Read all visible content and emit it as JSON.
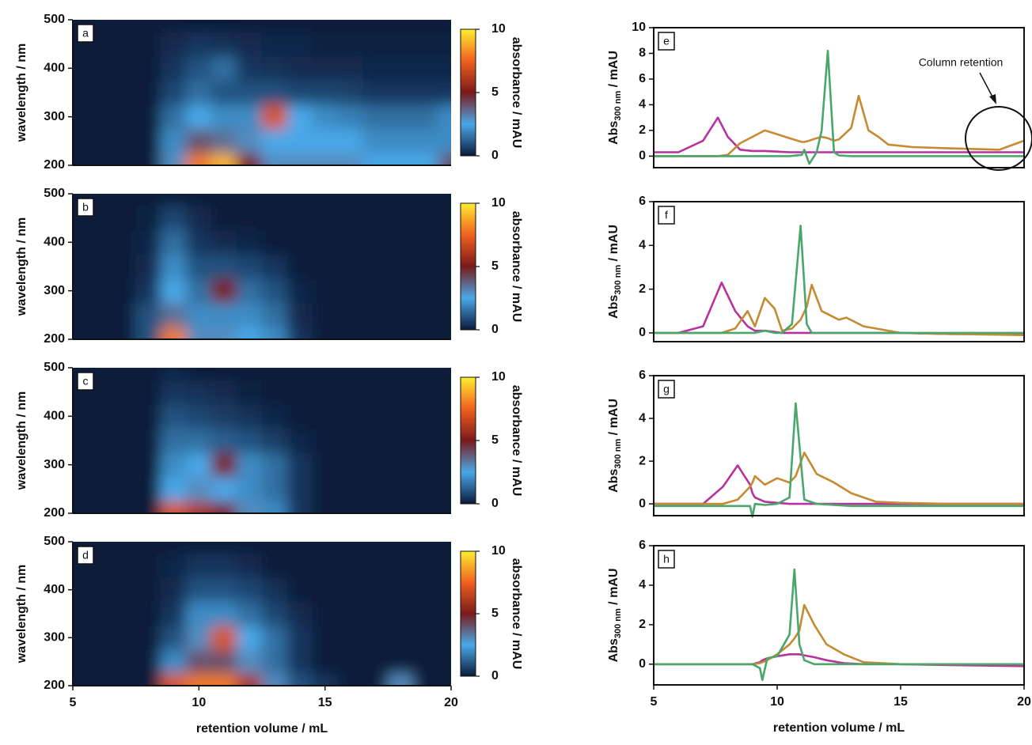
{
  "chart_data": [
    {
      "type": "heatmap",
      "panel": "a",
      "x": [
        5,
        6,
        7,
        8,
        9,
        10,
        11,
        12,
        13,
        14,
        15,
        16,
        17,
        18,
        19,
        20
      ],
      "y": [
        200,
        250,
        300,
        350,
        400,
        450,
        500
      ],
      "z": [
        [
          0,
          0,
          0,
          0,
          3,
          8,
          9,
          5,
          3,
          3,
          3,
          3,
          2.5,
          2.5,
          2.5,
          4
        ],
        [
          0,
          0,
          0,
          0,
          2,
          4,
          3.5,
          3,
          2.5,
          2.5,
          2.5,
          2.5,
          2,
          2,
          2,
          2
        ],
        [
          0,
          0,
          0,
          0,
          1.5,
          2.5,
          2,
          2,
          7,
          2.5,
          2,
          1.8,
          1.5,
          1.5,
          1.5,
          2
        ],
        [
          0,
          0,
          0,
          0,
          0.8,
          1.5,
          1,
          1,
          1,
          0.8,
          0.8,
          0.7,
          0.5,
          0.5,
          0.5,
          0.5
        ],
        [
          0,
          0,
          0,
          0,
          0.5,
          1,
          1.5,
          0.5,
          0.4,
          0.3,
          0.3,
          0.3,
          0.2,
          0.2,
          0.2,
          0.2
        ],
        [
          0,
          0,
          0,
          0,
          0.3,
          0.5,
          0.4,
          0.3,
          0.2,
          0.2,
          0.1,
          0.1,
          0.1,
          0.1,
          0.1,
          0.1
        ],
        [
          0,
          0,
          0,
          0,
          0,
          0,
          0,
          0,
          0,
          0,
          0,
          0,
          0,
          0,
          0,
          0
        ]
      ],
      "xlim": [
        5,
        20
      ],
      "ylim": [
        200,
        500
      ],
      "yticks": [
        200,
        300,
        400,
        500
      ],
      "ylabel": "wavelength / nm",
      "clim": [
        0,
        10
      ],
      "cticks": [
        0,
        5,
        10
      ],
      "clabel": "absorbance / mAU"
    },
    {
      "type": "heatmap",
      "panel": "b",
      "x": [
        5,
        6,
        7,
        8,
        9,
        10,
        11,
        12,
        13,
        14,
        15,
        16,
        17,
        18,
        19,
        20
      ],
      "y": [
        200,
        250,
        300,
        350,
        400,
        450,
        500
      ],
      "z": [
        [
          0,
          0,
          0,
          1,
          8,
          3,
          3,
          2.5,
          2,
          0.5,
          0,
          0,
          0,
          0,
          0,
          0
        ],
        [
          0,
          0,
          0,
          1,
          3.5,
          2,
          2,
          2,
          1.5,
          0.3,
          0,
          0,
          0,
          0,
          0,
          0
        ],
        [
          0,
          0,
          0,
          0.5,
          2.5,
          1.5,
          5,
          1.5,
          1,
          0.2,
          0,
          0,
          0,
          0,
          0,
          0
        ],
        [
          0,
          0,
          0,
          0.3,
          2,
          1,
          1,
          0.8,
          0.5,
          0,
          0,
          0,
          0,
          0,
          0,
          0
        ],
        [
          0,
          0,
          0,
          0.2,
          1.5,
          0.5,
          0.3,
          0.2,
          0,
          0,
          0,
          0,
          0,
          0,
          0,
          0
        ],
        [
          0,
          0,
          0,
          0.1,
          0.8,
          0.3,
          0,
          0,
          0,
          0,
          0,
          0,
          0,
          0,
          0,
          0
        ],
        [
          0,
          0,
          0,
          0,
          0,
          0,
          0,
          0,
          0,
          0,
          0,
          0,
          0,
          0,
          0,
          0
        ]
      ],
      "xlim": [
        5,
        20
      ],
      "ylim": [
        200,
        500
      ],
      "yticks": [
        200,
        300,
        400,
        500
      ],
      "ylabel": "wavelength / nm",
      "clim": [
        0,
        10
      ],
      "cticks": [
        0,
        5,
        10
      ],
      "clabel": "absorbance / mAU"
    },
    {
      "type": "heatmap",
      "panel": "c",
      "x": [
        5,
        6,
        7,
        8,
        9,
        10,
        11,
        12,
        13,
        14,
        15,
        16,
        17,
        18,
        19,
        20
      ],
      "y": [
        200,
        250,
        300,
        350,
        400,
        450,
        500
      ],
      "z": [
        [
          0,
          0,
          0,
          0,
          7,
          6,
          5,
          3,
          2,
          0.5,
          0,
          0,
          0,
          0,
          0,
          0
        ],
        [
          0,
          0,
          0,
          0,
          2.5,
          3,
          2.5,
          2,
          1.5,
          0.5,
          0,
          0,
          0,
          0,
          0,
          0
        ],
        [
          0,
          0,
          0,
          0,
          2,
          2.5,
          5,
          2,
          1.5,
          0.5,
          0,
          0,
          0,
          0,
          0,
          0
        ],
        [
          0,
          0,
          0,
          0,
          1.5,
          1.5,
          1.2,
          1,
          0.6,
          0.2,
          0,
          0,
          0,
          0,
          0,
          0
        ],
        [
          0,
          0,
          0,
          0,
          1,
          0.8,
          0.6,
          0.4,
          0.2,
          0,
          0,
          0,
          0,
          0,
          0,
          0
        ],
        [
          0,
          0,
          0,
          0,
          0.5,
          0.4,
          0.3,
          0.1,
          0,
          0,
          0,
          0,
          0,
          0,
          0,
          0
        ],
        [
          0,
          0,
          0,
          0,
          0.2,
          0,
          0,
          0,
          0,
          0,
          0,
          0,
          0,
          0,
          0,
          0
        ]
      ],
      "xlim": [
        5,
        20
      ],
      "ylim": [
        200,
        500
      ],
      "yticks": [
        200,
        300,
        400,
        500
      ],
      "ylabel": "wavelength / nm",
      "clim": [
        0,
        10
      ],
      "cticks": [
        0,
        5,
        10
      ],
      "clabel": "absorbance / mAU"
    },
    {
      "type": "heatmap",
      "panel": "d",
      "x": [
        5,
        6,
        7,
        8,
        9,
        10,
        11,
        12,
        13,
        14,
        15,
        16,
        17,
        18,
        19,
        20
      ],
      "y": [
        200,
        250,
        300,
        350,
        400,
        450,
        500
      ],
      "z": [
        [
          0,
          0,
          0,
          0,
          7,
          8,
          8,
          6,
          3,
          1,
          0.5,
          0,
          0,
          3,
          0,
          0
        ],
        [
          0,
          0,
          0,
          0,
          2,
          4,
          4,
          3,
          1.5,
          0.5,
          0,
          0,
          0,
          0,
          0,
          0
        ],
        [
          0,
          0,
          0,
          0,
          1,
          3,
          7,
          2.5,
          1.5,
          0.5,
          0,
          0,
          0,
          0,
          0,
          0
        ],
        [
          0,
          0,
          0,
          0,
          0.5,
          2,
          2,
          1.5,
          0.8,
          0.3,
          0,
          0,
          0,
          0,
          0,
          0
        ],
        [
          0,
          0,
          0,
          0,
          0.3,
          1,
          1,
          0.8,
          0.4,
          0,
          0,
          0,
          0,
          0,
          0,
          0
        ],
        [
          0,
          0,
          0,
          0,
          0.2,
          0.5,
          0.5,
          0.3,
          0,
          0,
          0,
          0,
          0,
          0,
          0,
          0
        ],
        [
          0,
          0,
          0,
          0,
          0,
          0,
          0,
          0,
          0,
          0,
          0,
          0,
          0,
          0,
          0,
          0
        ]
      ],
      "xlim": [
        5,
        20
      ],
      "ylim": [
        200,
        500
      ],
      "xticks": [
        5,
        10,
        15,
        20
      ],
      "yticks": [
        200,
        300,
        400,
        500
      ],
      "ylabel": "wavelength / nm",
      "xlabel": "retention volume / mL",
      "clim": [
        0,
        10
      ],
      "cticks": [
        0,
        5,
        10
      ],
      "clabel": "absorbance / mAU"
    },
    {
      "type": "line",
      "panel": "e",
      "x": [
        5,
        6,
        7,
        7.6,
        8,
        8.5,
        9,
        9.5,
        10,
        10.5,
        11,
        11.1,
        11.3,
        11.6,
        11.8,
        12.05,
        12.3,
        12.5,
        13,
        13.3,
        13.7,
        14.1,
        14.5,
        15.5,
        17,
        19,
        20
      ],
      "series": [
        {
          "color": "#b8329e",
          "values": [
            0.3,
            0.3,
            1.2,
            3.0,
            1.5,
            0.5,
            0.4,
            0.4,
            0.35,
            0.3,
            0.3,
            0.3,
            0.3,
            0.3,
            0.3,
            0.3,
            0.3,
            0.3,
            0.3,
            0.3,
            0.3,
            0.3,
            0.3,
            0.3,
            0.3,
            0.3,
            0.3
          ]
        },
        {
          "color": "#c58a32",
          "values": [
            0,
            0,
            0,
            0,
            0.1,
            1.0,
            1.5,
            2.0,
            1.7,
            1.4,
            1.1,
            1.1,
            1.2,
            1.4,
            1.5,
            1.4,
            1.2,
            1.3,
            2.2,
            4.7,
            2.0,
            1.5,
            0.9,
            0.7,
            0.6,
            0.5,
            1.2
          ]
        },
        {
          "color": "#4aa66a",
          "values": [
            0,
            0,
            0,
            0,
            0,
            0,
            0,
            0,
            0,
            0,
            0.1,
            0.5,
            -0.6,
            0.3,
            2.0,
            8.2,
            0.3,
            0.05,
            0,
            0,
            0,
            0,
            0,
            0,
            0,
            0,
            0
          ]
        }
      ],
      "xlim": [
        5,
        20
      ],
      "ylim": [
        -0.9,
        10
      ],
      "yticks": [
        0,
        2,
        4,
        6,
        8,
        10
      ],
      "ylabel": "Abs",
      "ylabel_sub": "300 nm",
      "ylabel_unit": " / mAU",
      "annotation": "Column retention"
    },
    {
      "type": "line",
      "panel": "f",
      "x": [
        5,
        6,
        7,
        7.75,
        8.3,
        8.8,
        9.1,
        9.5,
        9.9,
        10.2,
        10.6,
        10.95,
        11.2,
        11.4,
        11.8,
        12.5,
        12.8,
        13.5,
        15,
        17,
        20
      ],
      "series": [
        {
          "color": "#b8329e",
          "values": [
            0,
            0,
            0.3,
            2.3,
            1.0,
            0.3,
            0.1,
            0.1,
            0.05,
            0,
            0,
            0,
            0,
            0,
            0,
            0,
            0,
            0,
            0,
            -0.05,
            -0.05
          ]
        },
        {
          "color": "#c58a32",
          "values": [
            0,
            0,
            0,
            0,
            0.2,
            1.0,
            0.3,
            1.6,
            1.1,
            0.1,
            0.2,
            0.6,
            1.2,
            2.2,
            1.0,
            0.6,
            0.7,
            0.3,
            0,
            -0.05,
            -0.1
          ]
        },
        {
          "color": "#4aa66a",
          "values": [
            0,
            0,
            0,
            0,
            0,
            0,
            0,
            0.1,
            0,
            0,
            0.4,
            4.9,
            0.4,
            0,
            0,
            0,
            0,
            0,
            0,
            0,
            0
          ]
        }
      ],
      "xlim": [
        5,
        20
      ],
      "ylim": [
        -0.4,
        6
      ],
      "yticks": [
        0,
        2,
        4,
        6
      ],
      "ylabel": "Abs",
      "ylabel_sub": "300 nm",
      "ylabel_unit": " / mAU"
    },
    {
      "type": "line",
      "panel": "g",
      "x": [
        5,
        6,
        7,
        7.8,
        8.4,
        8.9,
        9.0,
        9.1,
        9.5,
        10,
        10.5,
        10.75,
        11.1,
        11.6,
        12.3,
        13,
        14,
        15,
        17,
        20
      ],
      "series": [
        {
          "color": "#b8329e",
          "values": [
            0,
            0,
            0,
            0.8,
            1.8,
            0.9,
            0.5,
            0.3,
            0.1,
            0.05,
            0,
            0,
            0,
            0,
            0,
            0,
            0,
            0,
            0,
            0
          ]
        },
        {
          "color": "#c58a32",
          "values": [
            0,
            0,
            0,
            0,
            0.2,
            0.8,
            1.0,
            1.3,
            0.9,
            1.2,
            1.0,
            1.3,
            2.4,
            1.4,
            1.0,
            0.5,
            0.1,
            0.05,
            0,
            0
          ]
        },
        {
          "color": "#4aa66a",
          "values": [
            -0.1,
            -0.1,
            -0.1,
            -0.1,
            -0.1,
            -0.1,
            -0.6,
            0,
            -0.05,
            0,
            0.3,
            4.7,
            0.2,
            0,
            -0.05,
            -0.1,
            -0.1,
            -0.1,
            -0.1,
            -0.1
          ]
        }
      ],
      "xlim": [
        5,
        20
      ],
      "ylim": [
        -0.55,
        6
      ],
      "yticks": [
        0,
        2,
        4,
        6
      ],
      "ylabel": "Abs",
      "ylabel_sub": "300 nm",
      "ylabel_unit": " / mAU"
    },
    {
      "type": "line",
      "panel": "h",
      "x": [
        5,
        7,
        9,
        9.3,
        9.4,
        9.6,
        10,
        10.5,
        10.7,
        10.9,
        11.1,
        11.5,
        12,
        12.7,
        13.5,
        15,
        17,
        20
      ],
      "series": [
        {
          "color": "#b8329e",
          "values": [
            0,
            0,
            0,
            0.1,
            0.2,
            0.3,
            0.4,
            0.5,
            0.5,
            0.5,
            0.45,
            0.35,
            0.2,
            0.05,
            0,
            0,
            -0.05,
            -0.1
          ]
        },
        {
          "color": "#c58a32",
          "values": [
            0,
            0,
            0,
            0.05,
            0.1,
            0.2,
            0.5,
            1.0,
            1.3,
            1.7,
            3.0,
            2.0,
            1.0,
            0.5,
            0.1,
            0,
            0,
            0
          ]
        },
        {
          "color": "#4aa66a",
          "values": [
            0,
            0,
            0,
            -0.2,
            -0.8,
            0.3,
            0.4,
            1.5,
            4.8,
            1.0,
            0.2,
            0,
            0,
            0,
            0,
            0,
            0,
            0
          ]
        }
      ],
      "xlim": [
        5,
        20
      ],
      "ylim": [
        -1.05,
        6
      ],
      "xticks": [
        5,
        10,
        15,
        20
      ],
      "yticks": [
        0,
        2,
        4,
        6
      ],
      "ylabel": "Abs",
      "ylabel_sub": "300 nm",
      "ylabel_unit": " / mAU",
      "xlabel": "retention volume / mL"
    }
  ]
}
